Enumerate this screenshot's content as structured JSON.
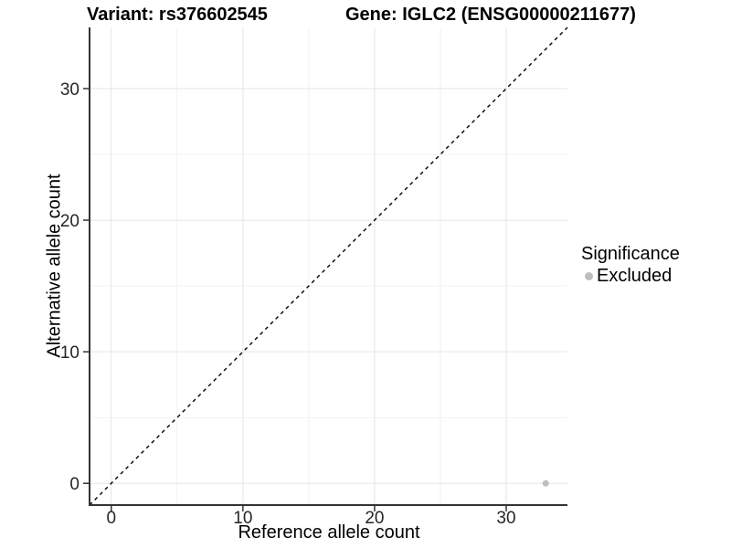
{
  "title": {
    "variant": "Variant: rs376602545",
    "gene": "Gene: IGLC2 (ENSG00000211677)"
  },
  "axes": {
    "x_label": "Reference allele count",
    "y_label": "Alternative allele count"
  },
  "legend": {
    "title": "Significance",
    "items": [
      {
        "label": "Excluded",
        "color": "#bdbdbd"
      }
    ]
  },
  "colors": {
    "background": "#ffffff",
    "axis_line": "#333333",
    "tick_mark": "#333333",
    "tick_label": "#262626",
    "grid_major": "#e5e5e5",
    "grid_minor": "#f2f2f2",
    "identity_line": "#000000",
    "point": "#bdbdbd"
  },
  "chart_data": {
    "type": "scatter",
    "title": "Variant: rs376602545    Gene: IGLC2 (ENSG00000211677)",
    "xlabel": "Reference allele count",
    "ylabel": "Alternative allele count",
    "xlim": [
      -1.65,
      34.65
    ],
    "ylim": [
      -1.65,
      34.65
    ],
    "x_ticks": [
      0,
      10,
      20,
      30
    ],
    "y_ticks": [
      0,
      10,
      20,
      30
    ],
    "x_minor_ticks": [
      5,
      15,
      25
    ],
    "y_minor_ticks": [
      5,
      15,
      25
    ],
    "grid": true,
    "legend_position": "right",
    "reference_line": {
      "kind": "identity",
      "slope": 1,
      "intercept": 0,
      "style": "dashed"
    },
    "series": [
      {
        "name": "Excluded",
        "color": "#bdbdbd",
        "points": [
          {
            "x": 33,
            "y": 0
          }
        ]
      }
    ]
  }
}
